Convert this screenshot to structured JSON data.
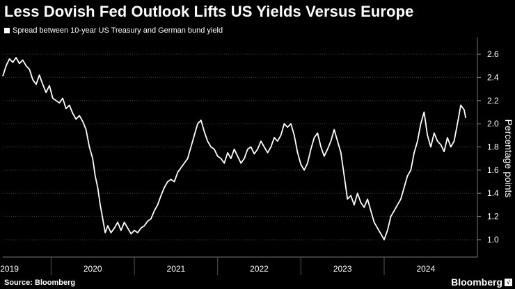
{
  "chart_data": {
    "type": "line",
    "title": "Less Dovish Fed Outlook Lifts US Yields Versus Europe",
    "series": [
      {
        "name": "Spread between 10-year US Treasury and German bund yield",
        "color": "#ffffff",
        "points": [
          [
            2018.92,
            2.41
          ],
          [
            2018.96,
            2.5
          ],
          [
            2019.0,
            2.56
          ],
          [
            2019.04,
            2.53
          ],
          [
            2019.08,
            2.57
          ],
          [
            2019.12,
            2.52
          ],
          [
            2019.16,
            2.55
          ],
          [
            2019.2,
            2.5
          ],
          [
            2019.24,
            2.47
          ],
          [
            2019.28,
            2.38
          ],
          [
            2019.32,
            2.34
          ],
          [
            2019.36,
            2.42
          ],
          [
            2019.4,
            2.34
          ],
          [
            2019.44,
            2.27
          ],
          [
            2019.48,
            2.33
          ],
          [
            2019.52,
            2.22
          ],
          [
            2019.56,
            2.2
          ],
          [
            2019.6,
            2.18
          ],
          [
            2019.64,
            2.22
          ],
          [
            2019.68,
            2.13
          ],
          [
            2019.72,
            2.16
          ],
          [
            2019.76,
            2.09
          ],
          [
            2019.8,
            2.04
          ],
          [
            2019.84,
            2.07
          ],
          [
            2019.88,
            2.02
          ],
          [
            2019.92,
            1.95
          ],
          [
            2019.96,
            1.8
          ],
          [
            2020.0,
            1.7
          ],
          [
            2020.03,
            1.55
          ],
          [
            2020.06,
            1.45
          ],
          [
            2020.09,
            1.3
          ],
          [
            2020.12,
            1.18
          ],
          [
            2020.15,
            1.06
          ],
          [
            2020.18,
            1.12
          ],
          [
            2020.22,
            1.06
          ],
          [
            2020.26,
            1.1
          ],
          [
            2020.3,
            1.15
          ],
          [
            2020.34,
            1.08
          ],
          [
            2020.38,
            1.15
          ],
          [
            2020.42,
            1.1
          ],
          [
            2020.46,
            1.05
          ],
          [
            2020.5,
            1.08
          ],
          [
            2020.54,
            1.06
          ],
          [
            2020.58,
            1.1
          ],
          [
            2020.62,
            1.12
          ],
          [
            2020.66,
            1.16
          ],
          [
            2020.7,
            1.18
          ],
          [
            2020.74,
            1.25
          ],
          [
            2020.78,
            1.3
          ],
          [
            2020.82,
            1.38
          ],
          [
            2020.86,
            1.45
          ],
          [
            2020.9,
            1.5
          ],
          [
            2020.94,
            1.52
          ],
          [
            2020.98,
            1.5
          ],
          [
            2021.02,
            1.58
          ],
          [
            2021.06,
            1.62
          ],
          [
            2021.1,
            1.66
          ],
          [
            2021.14,
            1.7
          ],
          [
            2021.18,
            1.8
          ],
          [
            2021.22,
            1.9
          ],
          [
            2021.26,
            2.0
          ],
          [
            2021.3,
            2.03
          ],
          [
            2021.34,
            1.93
          ],
          [
            2021.38,
            1.85
          ],
          [
            2021.42,
            1.8
          ],
          [
            2021.46,
            1.78
          ],
          [
            2021.5,
            1.72
          ],
          [
            2021.54,
            1.7
          ],
          [
            2021.58,
            1.66
          ],
          [
            2021.62,
            1.75
          ],
          [
            2021.66,
            1.7
          ],
          [
            2021.7,
            1.78
          ],
          [
            2021.74,
            1.72
          ],
          [
            2021.78,
            1.66
          ],
          [
            2021.82,
            1.7
          ],
          [
            2021.86,
            1.78
          ],
          [
            2021.9,
            1.8
          ],
          [
            2021.94,
            1.74
          ],
          [
            2021.98,
            1.78
          ],
          [
            2022.02,
            1.85
          ],
          [
            2022.06,
            1.8
          ],
          [
            2022.1,
            1.75
          ],
          [
            2022.14,
            1.8
          ],
          [
            2022.18,
            1.88
          ],
          [
            2022.22,
            1.85
          ],
          [
            2022.26,
            1.9
          ],
          [
            2022.3,
            2.0
          ],
          [
            2022.34,
            1.97
          ],
          [
            2022.38,
            2.0
          ],
          [
            2022.42,
            1.9
          ],
          [
            2022.46,
            1.75
          ],
          [
            2022.5,
            1.65
          ],
          [
            2022.54,
            1.6
          ],
          [
            2022.58,
            1.66
          ],
          [
            2022.62,
            1.78
          ],
          [
            2022.66,
            1.88
          ],
          [
            2022.7,
            1.92
          ],
          [
            2022.74,
            1.8
          ],
          [
            2022.78,
            1.72
          ],
          [
            2022.82,
            1.78
          ],
          [
            2022.86,
            1.85
          ],
          [
            2022.9,
            1.95
          ],
          [
            2022.94,
            1.85
          ],
          [
            2022.98,
            1.75
          ],
          [
            2023.02,
            1.55
          ],
          [
            2023.06,
            1.35
          ],
          [
            2023.1,
            1.38
          ],
          [
            2023.14,
            1.3
          ],
          [
            2023.18,
            1.4
          ],
          [
            2023.22,
            1.32
          ],
          [
            2023.26,
            1.28
          ],
          [
            2023.3,
            1.35
          ],
          [
            2023.34,
            1.25
          ],
          [
            2023.38,
            1.15
          ],
          [
            2023.42,
            1.1
          ],
          [
            2023.46,
            1.05
          ],
          [
            2023.5,
            1.0
          ],
          [
            2023.54,
            1.08
          ],
          [
            2023.58,
            1.2
          ],
          [
            2023.62,
            1.25
          ],
          [
            2023.66,
            1.3
          ],
          [
            2023.7,
            1.35
          ],
          [
            2023.74,
            1.45
          ],
          [
            2023.78,
            1.55
          ],
          [
            2023.82,
            1.6
          ],
          [
            2023.86,
            1.75
          ],
          [
            2023.9,
            1.85
          ],
          [
            2023.94,
            2.0
          ],
          [
            2023.98,
            2.1
          ],
          [
            2024.02,
            1.9
          ],
          [
            2024.06,
            1.8
          ],
          [
            2024.1,
            1.92
          ],
          [
            2024.14,
            1.85
          ],
          [
            2024.18,
            1.82
          ],
          [
            2024.22,
            1.76
          ],
          [
            2024.26,
            1.88
          ],
          [
            2024.3,
            1.8
          ],
          [
            2024.34,
            1.85
          ],
          [
            2024.38,
            2.0
          ],
          [
            2024.42,
            2.16
          ],
          [
            2024.46,
            2.12
          ],
          [
            2024.48,
            2.05
          ]
        ]
      }
    ],
    "x_ticks": [
      "2019",
      "2020",
      "2021",
      "2022",
      "2023",
      "2024"
    ],
    "x_tick_positions": [
      2019.0,
      2020.0,
      2021.0,
      2022.0,
      2023.0,
      2024.0
    ],
    "x_boundaries": [
      2019.5,
      2020.5,
      2021.5,
      2022.5,
      2023.5
    ],
    "xlim": [
      2018.92,
      2024.62
    ],
    "y_ticks": [
      "2.6",
      "2.4",
      "2.2",
      "2.0",
      "1.8",
      "1.6",
      "1.4",
      "1.2",
      "1.0"
    ],
    "y_tick_values": [
      2.6,
      2.4,
      2.2,
      2.0,
      1.8,
      1.6,
      1.4,
      1.2,
      1.0
    ],
    "ylim": [
      0.85,
      2.72
    ],
    "ylabel": "Percentage points",
    "xlabel": "",
    "grid": true,
    "legend_position": "top-left"
  },
  "footer": {
    "source": "Source: Bloomberg",
    "brand": "Bloomberg",
    "brand_badge": "√"
  }
}
